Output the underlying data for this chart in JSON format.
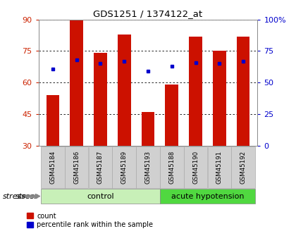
{
  "title": "GDS1251 / 1374122_at",
  "samples": [
    "GSM45184",
    "GSM45186",
    "GSM45187",
    "GSM45189",
    "GSM45193",
    "GSM45188",
    "GSM45190",
    "GSM45191",
    "GSM45192"
  ],
  "count_values": [
    54,
    90,
    74,
    83,
    46,
    59,
    82,
    75,
    82
  ],
  "percentile_values": [
    61,
    68,
    65,
    67,
    59,
    63,
    66,
    65,
    67
  ],
  "groups": [
    {
      "label": "control",
      "start": 0,
      "end": 5,
      "color": "#c8f0b8"
    },
    {
      "label": "acute hypotension",
      "start": 5,
      "end": 9,
      "color": "#50d840"
    }
  ],
  "group_label": "stress",
  "ylim_left": [
    30,
    90
  ],
  "ylim_right": [
    0,
    100
  ],
  "yticks_left": [
    30,
    45,
    60,
    75,
    90
  ],
  "yticks_right": [
    0,
    25,
    50,
    75,
    100
  ],
  "ytick_labels_right": [
    "0",
    "25",
    "50",
    "75",
    "100%"
  ],
  "bar_color": "#cc1100",
  "dot_color": "#0000cc",
  "bar_width": 0.55,
  "background_color": "#ffffff",
  "tick_label_bg": "#d0d0d0",
  "grid_color": "#000000",
  "left_tick_color": "#cc2200",
  "right_tick_color": "#0000cc"
}
